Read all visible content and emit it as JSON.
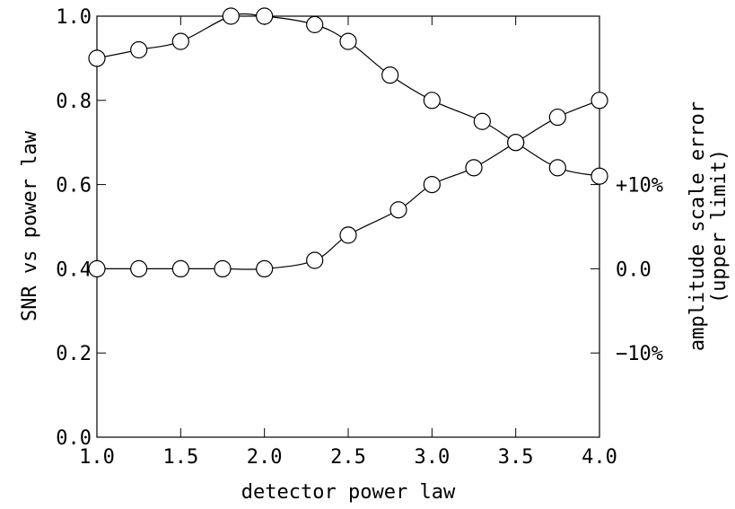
{
  "chart_data": {
    "type": "line",
    "title": "",
    "xlabel": "detector power law",
    "ylabel": "SNR vs power law",
    "y2label_line1": "amplitude scale error",
    "y2label_line2": "(upper limit)",
    "xlim": [
      1.0,
      4.0
    ],
    "ylim": [
      0.0,
      1.0
    ],
    "xticks": [
      1.0,
      1.5,
      2.0,
      2.5,
      3.0,
      3.5,
      4.0
    ],
    "xtick_labels": [
      "1.0",
      "1.5",
      "2.0",
      "2.5",
      "3.0",
      "3.5",
      "4.0"
    ],
    "yticks": [
      0.0,
      0.2,
      0.4,
      0.6,
      0.8,
      1.0
    ],
    "ytick_labels": [
      "0.0",
      "0.2",
      "0.4",
      "0.6",
      "0.8",
      "1.0"
    ],
    "y2ticks": [
      0.6,
      0.4,
      0.2
    ],
    "y2tick_labels": [
      "+10%",
      "0.0",
      "−10%"
    ],
    "grid": false,
    "legend": "none",
    "series": [
      {
        "x": [
          1.0,
          1.25,
          1.5,
          1.8,
          2.0,
          2.3,
          2.5,
          2.75,
          3.0,
          3.3,
          3.5,
          3.75,
          4.0
        ],
        "values": [
          0.9,
          0.92,
          0.94,
          1.0,
          1.0,
          0.98,
          0.94,
          0.86,
          0.8,
          0.75,
          0.7,
          0.64,
          0.62
        ]
      },
      {
        "x": [
          1.0,
          1.25,
          1.5,
          1.75,
          2.0,
          2.3,
          2.5,
          2.8,
          3.0,
          3.25,
          3.5,
          3.75,
          4.0
        ],
        "values": [
          0.4,
          0.4,
          0.4,
          0.4,
          0.4,
          0.42,
          0.48,
          0.54,
          0.6,
          0.64,
          0.7,
          0.76,
          0.8
        ]
      }
    ]
  }
}
